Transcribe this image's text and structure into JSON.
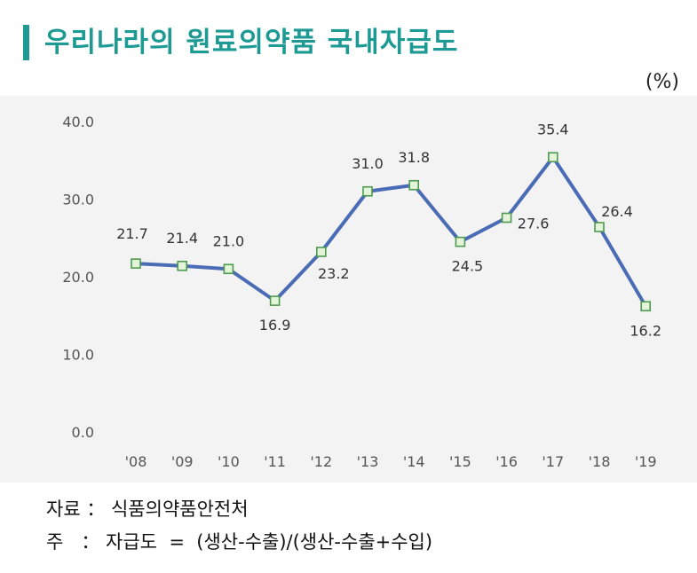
{
  "header": {
    "title": "우리나라의  원료의약품  국내자급도",
    "unit": "(%)"
  },
  "notes": {
    "source": "자료 ： 식품의약품안전처",
    "definition": "주   ： 자급도  =  (생산-수출)/(생산-수출+수입)"
  },
  "colors": {
    "title": "#1d9a93",
    "line": "#4a6bb5",
    "marker_fill": "#e4f4d8",
    "marker_stroke": "#4e9a50",
    "panel": "#f3f3f3"
  },
  "chart_data": {
    "type": "line",
    "title": "우리나라의 원료의약품 국내자급도",
    "xlabel": "",
    "ylabel": "(%)",
    "categories": [
      "'08",
      "'09",
      "'10",
      "'11",
      "'12",
      "'13",
      "'14",
      "'15",
      "'16",
      "'17",
      "'18",
      "'19"
    ],
    "values": [
      21.7,
      21.4,
      21.0,
      16.9,
      23.2,
      31.0,
      31.8,
      24.5,
      27.6,
      35.4,
      26.4,
      16.2
    ],
    "data_labels": [
      "21.7",
      "21.4",
      "21.0",
      "16.9",
      "23.2",
      "31.0",
      "31.8",
      "24.5",
      "27.6",
      "35.4",
      "26.4",
      "16.2"
    ],
    "label_positions": [
      "above",
      "above",
      "above",
      "below",
      "below",
      "above",
      "above",
      "below",
      "below",
      "above",
      "above",
      "below"
    ],
    "yticks": [
      "0.0",
      "10.0",
      "20.0",
      "30.0",
      "40.0"
    ],
    "ylim": [
      0,
      40
    ],
    "grid": false,
    "legend": "none"
  }
}
